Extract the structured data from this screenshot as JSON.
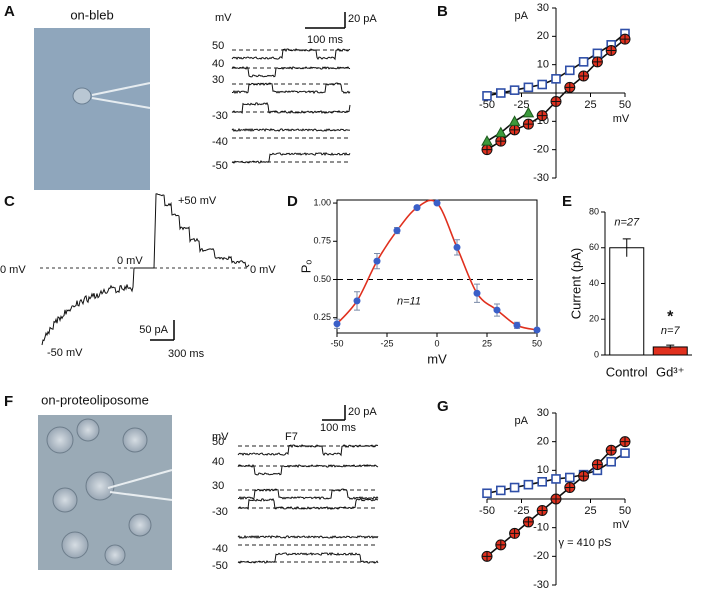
{
  "figure": {
    "A": {
      "label": "A",
      "title": "on-bleb",
      "trace_unit": "mV",
      "trace_levels": [
        50,
        40,
        30,
        -30,
        -40,
        -50
      ],
      "scale_current": "20 pA",
      "scale_time": "100 ms"
    },
    "C": {
      "label": "C",
      "level_left": "0 mV",
      "level_step": "+50 mV",
      "level_mid": "0 mV",
      "level_right": "0 mV",
      "level_start": "-50 mV",
      "scale_current": "50 pA",
      "scale_time": "300 ms"
    },
    "F": {
      "label": "F",
      "title": "on-proteoliposome",
      "trace_unit": "mV",
      "trace_name": "F7",
      "trace_levels": [
        50,
        40,
        30,
        -30,
        -40,
        -50
      ],
      "scale_current": "20 pA",
      "scale_time": "100 ms"
    }
  },
  "chart_data": [
    {
      "label": "B",
      "type": "iv",
      "y_label": "pA",
      "x_label": "mV",
      "x": [
        -50,
        -40,
        -30,
        -20,
        -10,
        0,
        10,
        20,
        30,
        40,
        50
      ],
      "xlim": [
        -50,
        50
      ],
      "ylim": [
        -30,
        30
      ],
      "xticks": [
        -50,
        -25,
        25,
        50
      ],
      "yticks": [
        -30,
        -20,
        -10,
        10,
        20,
        30
      ],
      "line_color": "#111111",
      "series": [
        {
          "color": "#2f4fa8",
          "marker": "square",
          "values": [
            -1,
            0,
            1,
            2,
            3,
            5,
            8,
            11,
            14,
            17,
            21
          ]
        },
        {
          "color": "#e0301e",
          "marker": "circle",
          "values": [
            -20,
            -17,
            -13,
            -11,
            -8,
            -3,
            2,
            6,
            11,
            15,
            19
          ]
        },
        {
          "color": "#3c9a3c",
          "marker": "triangle",
          "values": [
            -17,
            -14,
            -10,
            -7,
            null,
            null,
            null,
            null,
            null,
            null,
            null
          ]
        }
      ]
    },
    {
      "label": "D",
      "type": "po",
      "y_label": "Pₒ",
      "x_label": "mV",
      "annotation": "n=11",
      "x": [
        -50,
        -40,
        -30,
        -20,
        -10,
        0,
        10,
        20,
        30,
        40,
        50
      ],
      "xlim": [
        -50,
        50
      ],
      "ylim": [
        0.15,
        1.02
      ],
      "xticks": [
        -50,
        -25,
        0,
        25,
        50
      ],
      "yticks": [
        0.25,
        0.75,
        {
          "value": 0.5,
          "label": "0.50"
        },
        {
          "value": 1,
          "label": "1.00"
        }
      ],
      "reference_line": 0.5,
      "fit_color": "#e0301e",
      "series": [
        {
          "color": "#3a5fc8",
          "values": [
            0.21,
            0.36,
            0.62,
            0.82,
            0.97,
            1.0,
            0.71,
            0.41,
            0.3,
            0.2,
            0.17
          ],
          "errors": [
            0.03,
            0.06,
            0.05,
            0.02,
            0.01,
            0,
            0.05,
            0.06,
            0.04,
            0.02,
            0.01
          ]
        }
      ]
    },
    {
      "label": "E",
      "type": "bar",
      "y_label": "Current (pA)",
      "categories": [
        "Control",
        "Gd³⁺"
      ],
      "values": [
        60,
        4.5
      ],
      "errors": [
        5,
        1
      ],
      "colors": [
        "#ffffff",
        "#e0301e"
      ],
      "value_annotations": [
        "n=27",
        "n=7"
      ],
      "significance": "*",
      "ylim": [
        0,
        80
      ],
      "yticks": [
        0,
        20,
        40,
        60,
        80
      ]
    },
    {
      "label": "G",
      "type": "iv",
      "y_label": "pA",
      "x_label": "mV",
      "annotation": "γ = 410 pS",
      "x": [
        -50,
        -40,
        -30,
        -20,
        -10,
        0,
        10,
        20,
        30,
        40,
        50
      ],
      "xlim": [
        -50,
        50
      ],
      "ylim": [
        -30,
        30
      ],
      "xticks": [
        -50,
        -25,
        25,
        50
      ],
      "yticks": [
        -30,
        -20,
        -10,
        10,
        20,
        30
      ],
      "line_color": "#111111",
      "series": [
        {
          "color": "#2f4fa8",
          "marker": "square",
          "values": [
            2,
            3,
            4,
            5,
            6,
            7,
            7.5,
            8.5,
            10,
            13,
            16
          ]
        },
        {
          "color": "#e0301e",
          "marker": "circle",
          "values": [
            -20,
            -16,
            -12,
            -8,
            -4,
            0,
            4,
            8,
            12,
            17,
            20
          ]
        }
      ]
    }
  ]
}
